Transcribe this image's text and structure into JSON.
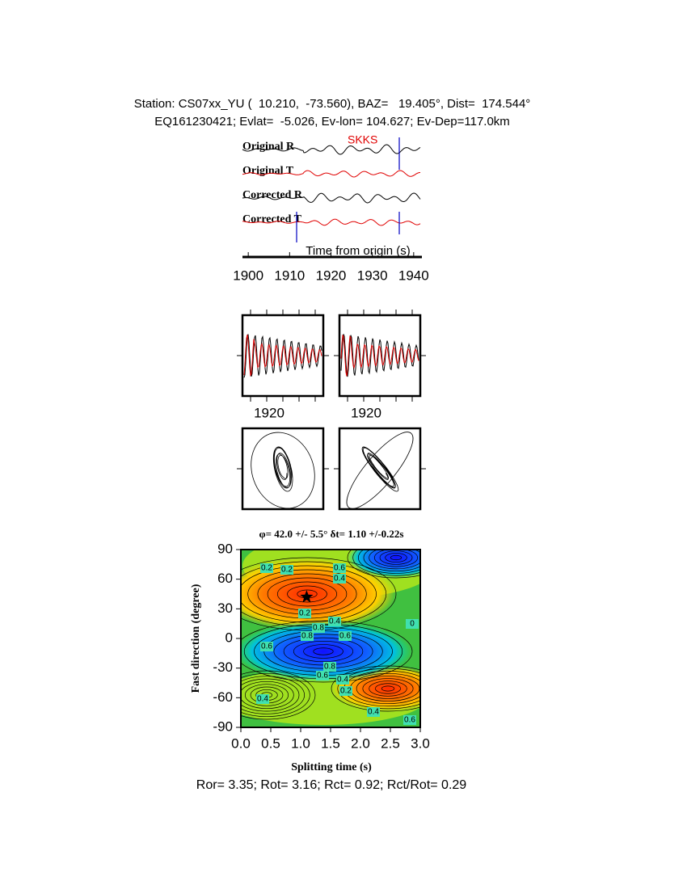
{
  "header": {
    "line1": "Station: CS07xx_YU (  10.210,  -73.560), BAZ=   19.405°, Dist=  174.544°",
    "line2": "EQ161230421; Evlat=  -5.026, Ev-lon= 104.627; Ev-Dep=117.0km"
  },
  "waveforms": {
    "phase": "SKKS",
    "traces": [
      "Original R",
      "Original T",
      "Corrected R",
      "Corrected T"
    ],
    "xlabel": "Time from origin (s)",
    "xlim": [
      1898.6,
      1941.6
    ],
    "xticks": [
      1900,
      1910,
      1920,
      1930,
      1940
    ]
  },
  "windows": {
    "xticks": [
      1920,
      1920
    ]
  },
  "contour": {
    "title": "φ= 42.0 +/- 5.5° δt= 1.10 +/-0.22s",
    "xlabel": "Splitting time (s)",
    "ylabel": "Fast direction (degree)",
    "xlim": [
      0,
      3
    ],
    "ylim": [
      -90,
      90
    ],
    "xticks": [
      {
        "value": 0,
        "label": "0.0"
      },
      0.5,
      {
        "value": 1,
        "label": "1.0"
      },
      1.5,
      {
        "value": 2,
        "label": "2.0"
      },
      2.5,
      {
        "value": 3,
        "label": "3.0"
      }
    ],
    "yticks": [
      -90,
      -60,
      -30,
      0,
      30,
      60,
      90
    ],
    "best": {
      "dt": 1.1,
      "phi": 42
    },
    "labels": [
      "0.2",
      "0.2",
      "0.6",
      "0.4",
      "0.2",
      "0.4",
      "0.8",
      "0.8",
      "0.6",
      "0.6",
      "0.8",
      "0.6",
      "0.4",
      "0.2",
      "0.4",
      "0.6",
      "0.4",
      "0"
    ]
  },
  "footer": "Ror= 3.35; Rot= 3.16; Rct= 0.92; Rct/Rot= 0.29"
}
